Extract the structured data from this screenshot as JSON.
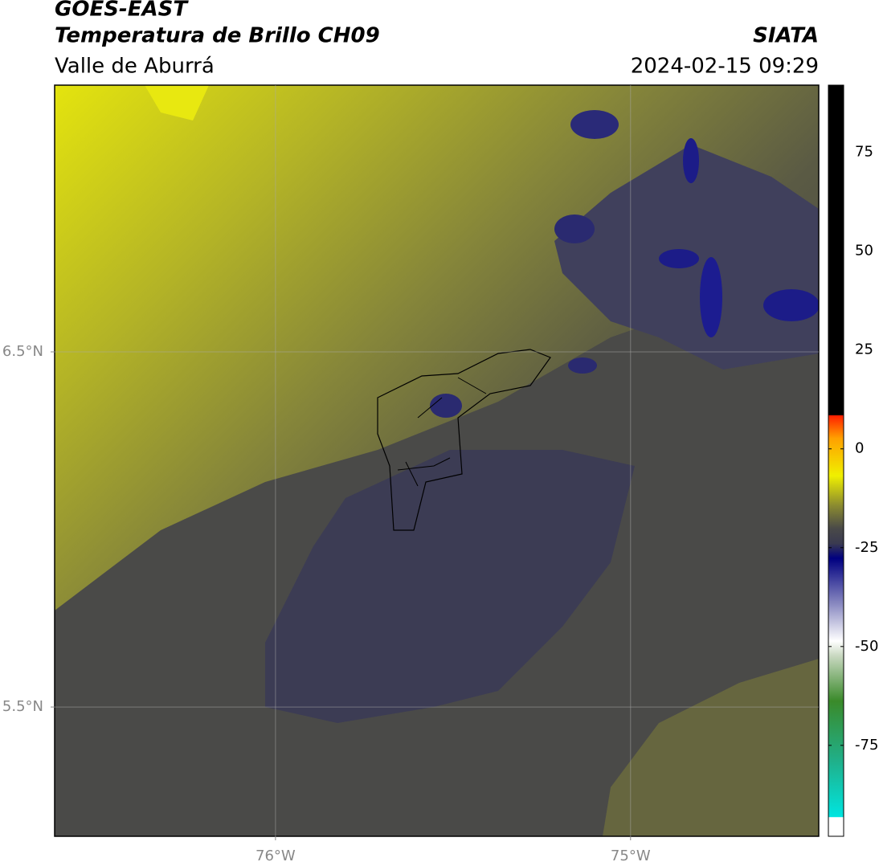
{
  "header": {
    "title": "GOES-EAST",
    "subtitle": "Temperatura de Brillo CH09",
    "region": "Valle de Aburrá",
    "source": "SIATA",
    "datetime": "2024-02-15 09:29"
  },
  "map": {
    "xlim": [
      -76.622,
      -74.47
    ],
    "ylim": [
      5.136,
      7.251
    ],
    "xticks": [
      {
        "value": -76,
        "label": "76°W"
      },
      {
        "value": -75,
        "label": "75°W"
      }
    ],
    "yticks": [
      {
        "value": 6.5,
        "label": "6.5°N"
      },
      {
        "value": 5.5,
        "label": "5.5°N"
      }
    ],
    "grid": true
  },
  "colorbar": {
    "lim": [
      -98,
      92
    ],
    "ticks": [
      75,
      50,
      25,
      0,
      -25,
      -50,
      -75
    ]
  }
}
